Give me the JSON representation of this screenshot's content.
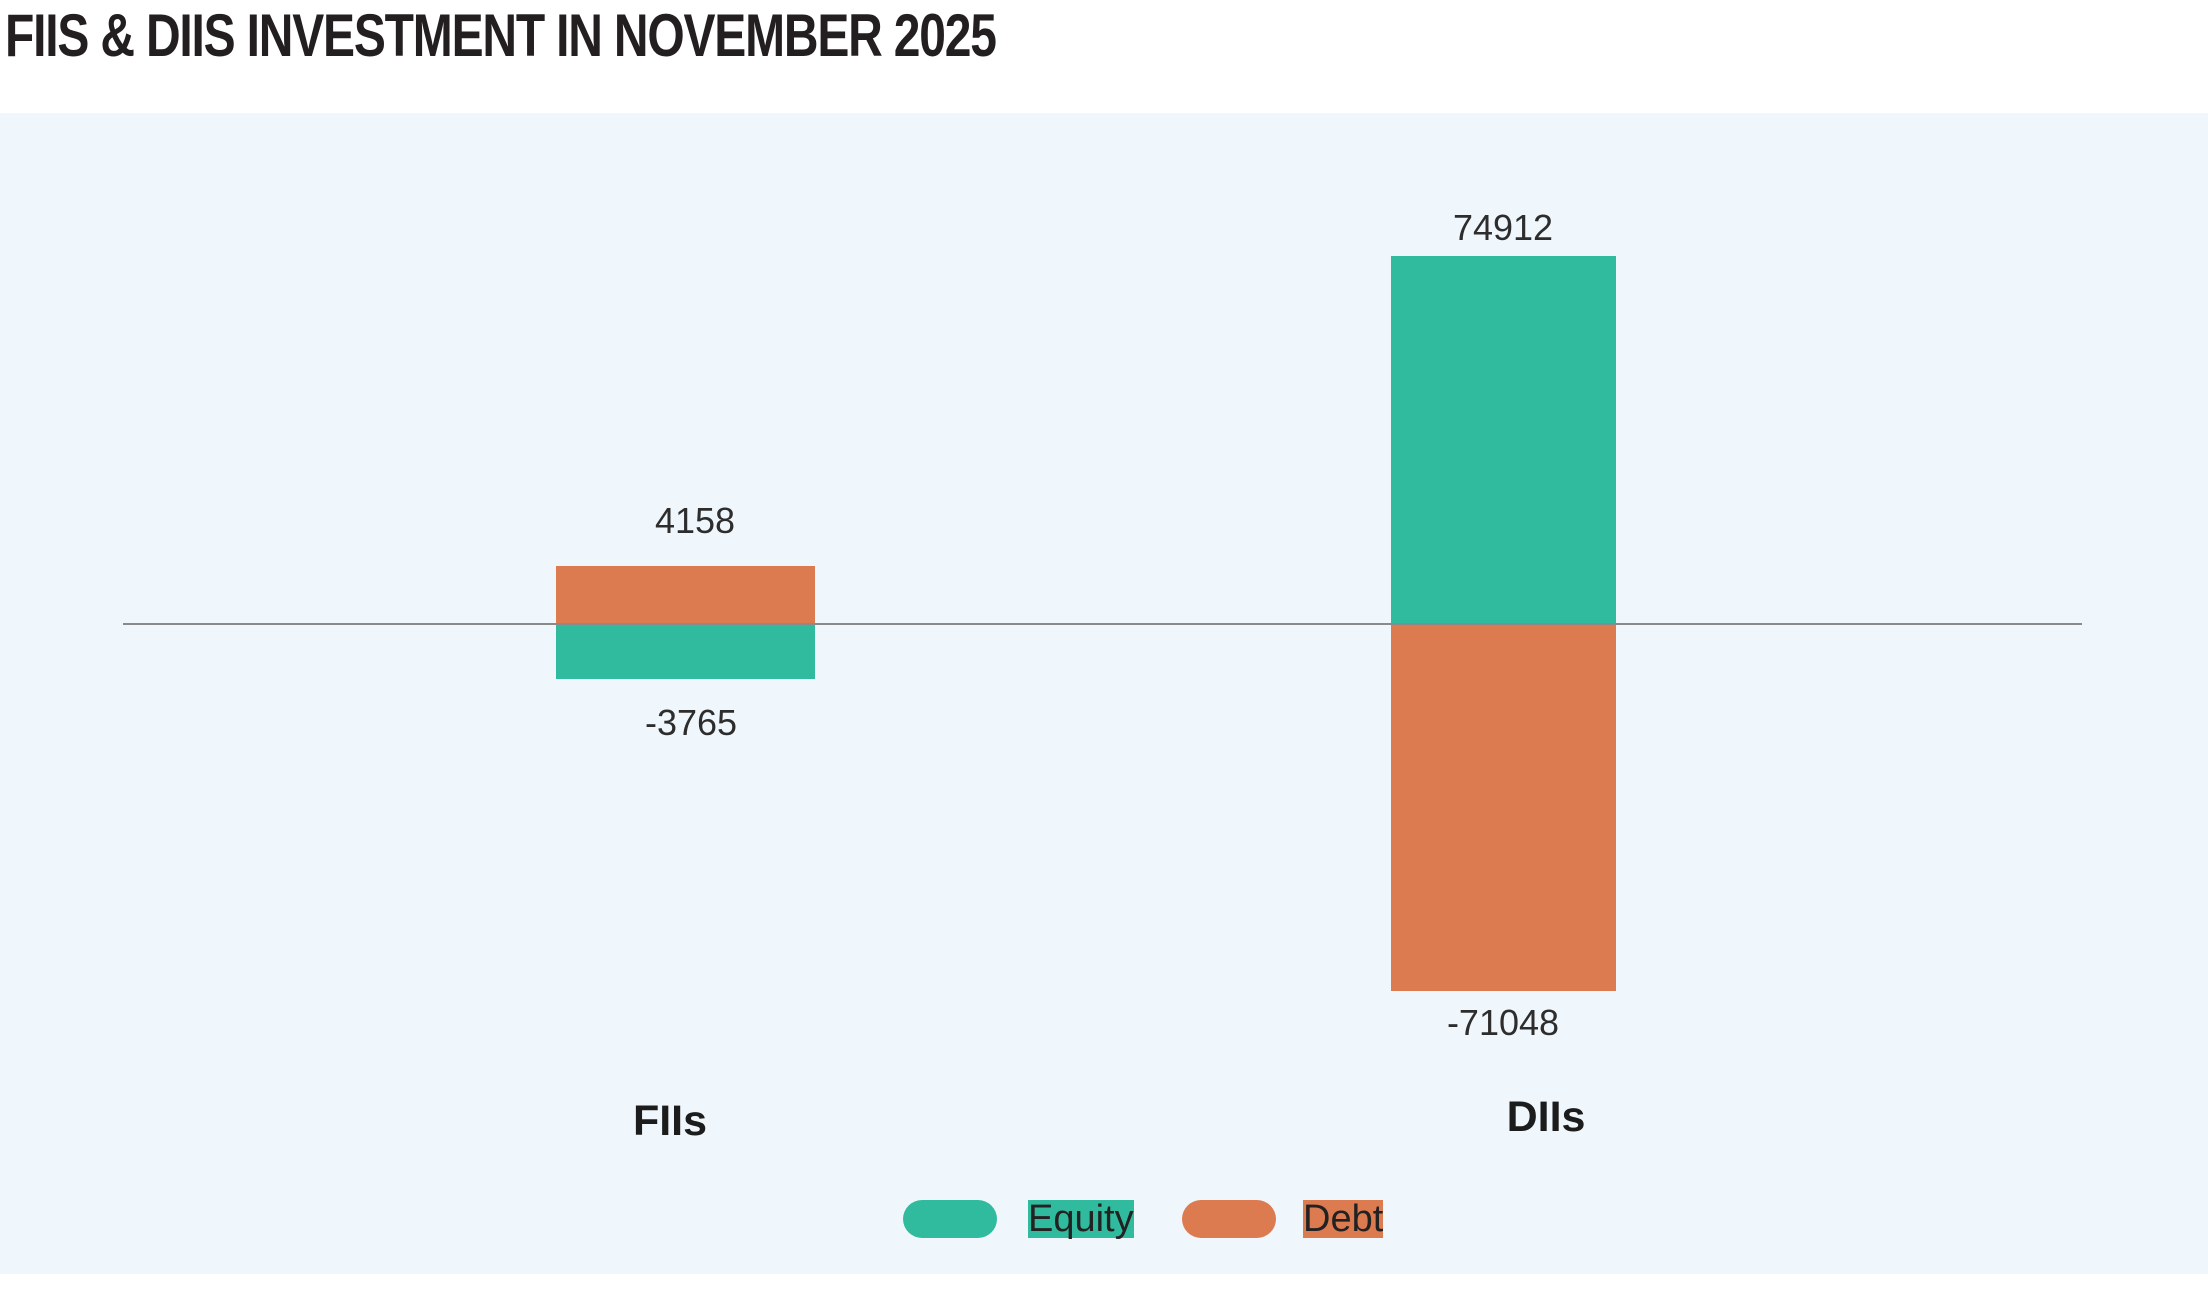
{
  "page": {
    "title": "FIIS & DIIS INVESTMENT IN NOVEMBER 2025"
  },
  "chart_data": {
    "type": "bar",
    "title": "FIIS & DIIS INVESTMENT IN NOVEMBER 2025",
    "categories": [
      "FIIs",
      "DIIs"
    ],
    "series": [
      {
        "name": "Equity",
        "values": [
          -3765,
          74912
        ],
        "color": "#30bb9e"
      },
      {
        "name": "Debt",
        "values": [
          4158,
          -71048
        ],
        "color": "#dd7b50"
      }
    ],
    "baseline": 0,
    "grid": false,
    "legend_position": "bottom",
    "panel_background": "#f0f7fc",
    "axis_color": "#8a8a8a",
    "notes": "Positive values plotted above the zero axis line, negative values below; data labels shown outside bar ends."
  }
}
